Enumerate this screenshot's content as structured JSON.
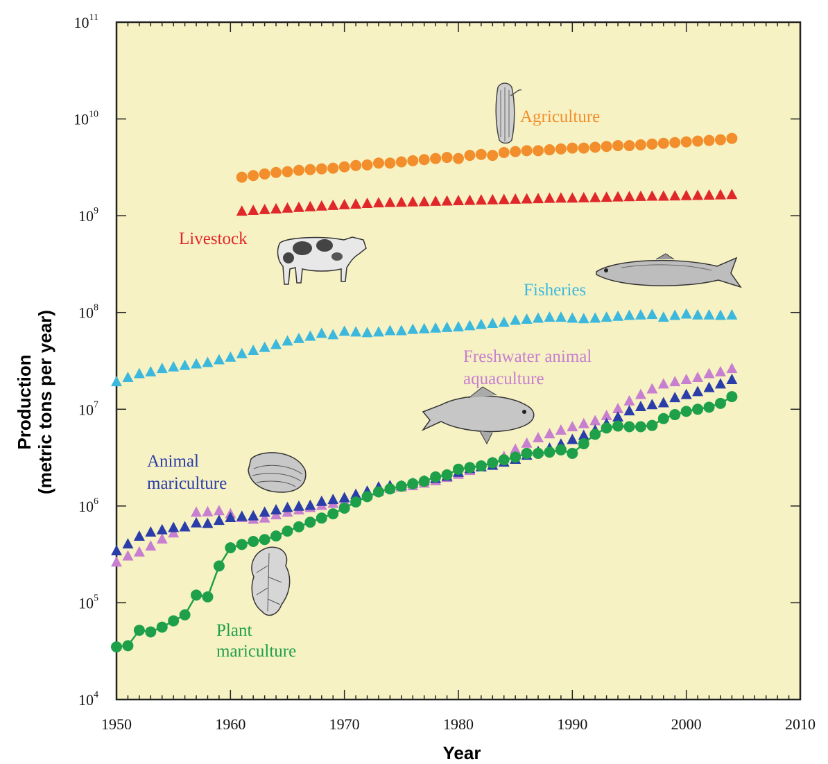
{
  "chart_data": {
    "type": "scatter",
    "title": "",
    "xlabel": "Year",
    "ylabel_line1": "Production",
    "ylabel_line2": "(metric tons per year)",
    "xlim": [
      1950,
      2010
    ],
    "ylim": [
      10000,
      100000000000
    ],
    "yscale": "log",
    "grid": false,
    "x_ticks": [
      "1950",
      "1960",
      "1970",
      "1980",
      "1990",
      "2000",
      "2010"
    ],
    "y_ticks": [
      {
        "base": "10",
        "exp": "4"
      },
      {
        "base": "10",
        "exp": "5"
      },
      {
        "base": "10",
        "exp": "6"
      },
      {
        "base": "10",
        "exp": "7"
      },
      {
        "base": "10",
        "exp": "8"
      },
      {
        "base": "10",
        "exp": "9"
      },
      {
        "base": "10",
        "exp": "10"
      },
      {
        "base": "10",
        "exp": "11"
      }
    ],
    "series": [
      {
        "name": "Agriculture",
        "label_lines": [
          "Agriculture"
        ],
        "color": "#f28e2b",
        "marker": "circle",
        "x": [
          1961,
          1962,
          1963,
          1964,
          1965,
          1966,
          1967,
          1968,
          1969,
          1970,
          1971,
          1972,
          1973,
          1974,
          1975,
          1976,
          1977,
          1978,
          1979,
          1980,
          1981,
          1982,
          1983,
          1984,
          1985,
          1986,
          1987,
          1988,
          1989,
          1990,
          1991,
          1992,
          1993,
          1994,
          1995,
          1996,
          1997,
          1998,
          1999,
          2000,
          2001,
          2002,
          2003,
          2004
        ],
        "y": [
          2500000000.0,
          2600000000.0,
          2700000000.0,
          2800000000.0,
          2850000000.0,
          2950000000.0,
          3000000000.0,
          3050000000.0,
          3100000000.0,
          3200000000.0,
          3300000000.0,
          3350000000.0,
          3500000000.0,
          3500000000.0,
          3600000000.0,
          3700000000.0,
          3800000000.0,
          3900000000.0,
          4000000000.0,
          3900000000.0,
          4200000000.0,
          4300000000.0,
          4200000000.0,
          4500000000.0,
          4600000000.0,
          4700000000.0,
          4700000000.0,
          4800000000.0,
          4900000000.0,
          5000000000.0,
          5000000000.0,
          5100000000.0,
          5200000000.0,
          5300000000.0,
          5300000000.0,
          5400000000.0,
          5500000000.0,
          5600000000.0,
          5700000000.0,
          5800000000.0,
          5900000000.0,
          6000000000.0,
          6100000000.0,
          6300000000.0
        ]
      },
      {
        "name": "Livestock",
        "label_lines": [
          "Livestock"
        ],
        "color": "#e0282a",
        "marker": "triangle",
        "x": [
          1961,
          1962,
          1963,
          1964,
          1965,
          1966,
          1967,
          1968,
          1969,
          1970,
          1971,
          1972,
          1973,
          1974,
          1975,
          1976,
          1977,
          1978,
          1979,
          1980,
          1981,
          1982,
          1983,
          1984,
          1985,
          1986,
          1987,
          1988,
          1989,
          1990,
          1991,
          1992,
          1993,
          1994,
          1995,
          1996,
          1997,
          1998,
          1999,
          2000,
          2001,
          2002,
          2003,
          2004
        ],
        "y": [
          1100000000.0,
          1120000000.0,
          1140000000.0,
          1160000000.0,
          1180000000.0,
          1200000000.0,
          1220000000.0,
          1240000000.0,
          1260000000.0,
          1280000000.0,
          1300000000.0,
          1320000000.0,
          1340000000.0,
          1350000000.0,
          1360000000.0,
          1370000000.0,
          1380000000.0,
          1390000000.0,
          1400000000.0,
          1410000000.0,
          1420000000.0,
          1430000000.0,
          1440000000.0,
          1450000000.0,
          1460000000.0,
          1470000000.0,
          1480000000.0,
          1490000000.0,
          1500000000.0,
          1500000000.0,
          1510000000.0,
          1520000000.0,
          1530000000.0,
          1540000000.0,
          1550000000.0,
          1560000000.0,
          1570000000.0,
          1570000000.0,
          1580000000.0,
          1590000000.0,
          1600000000.0,
          1610000000.0,
          1620000000.0,
          1630000000.0
        ]
      },
      {
        "name": "Fisheries",
        "label_lines": [
          "Fisheries"
        ],
        "color": "#3cb8dc",
        "marker": "triangle",
        "x": [
          1950,
          1951,
          1952,
          1953,
          1954,
          1955,
          1956,
          1957,
          1958,
          1959,
          1960,
          1961,
          1962,
          1963,
          1964,
          1965,
          1966,
          1967,
          1968,
          1969,
          1970,
          1971,
          1972,
          1973,
          1974,
          1975,
          1976,
          1977,
          1978,
          1979,
          1980,
          1981,
          1982,
          1983,
          1984,
          1985,
          1986,
          1987,
          1988,
          1989,
          1990,
          1991,
          1992,
          1993,
          1994,
          1995,
          1996,
          1997,
          1998,
          1999,
          2000,
          2001,
          2002,
          2003,
          2004
        ],
        "y": [
          19000000.0,
          21000000.0,
          23000000.0,
          24000000.0,
          26000000.0,
          27000000.0,
          28000000.0,
          29000000.0,
          30000000.0,
          32000000.0,
          34000000.0,
          37000000.0,
          40000000.0,
          43000000.0,
          46000000.0,
          50000000.0,
          53000000.0,
          56000000.0,
          60000000.0,
          58000000.0,
          63000000.0,
          62000000.0,
          61000000.0,
          62000000.0,
          64000000.0,
          64000000.0,
          66000000.0,
          67000000.0,
          68000000.0,
          69000000.0,
          70000000.0,
          72000000.0,
          74000000.0,
          76000000.0,
          78000000.0,
          82000000.0,
          84000000.0,
          86000000.0,
          88000000.0,
          88000000.0,
          86000000.0,
          85000000.0,
          86000000.0,
          88000000.0,
          90000000.0,
          92000000.0,
          93000000.0,
          94000000.0,
          88000000.0,
          92000000.0,
          95000000.0,
          93000000.0,
          93000000.0,
          92000000.0,
          93000000.0
        ]
      },
      {
        "name": "Freshwater animal aquaculture",
        "label_lines": [
          "Freshwater animal",
          "aquaculture"
        ],
        "color": "#c77fcf",
        "marker": "triangle",
        "x": [
          1950,
          1951,
          1952,
          1953,
          1954,
          1955,
          1956,
          1957,
          1958,
          1959,
          1960,
          1961,
          1962,
          1963,
          1964,
          1965,
          1966,
          1967,
          1968,
          1969,
          1970,
          1971,
          1972,
          1973,
          1974,
          1975,
          1976,
          1977,
          1978,
          1979,
          1980,
          1981,
          1982,
          1983,
          1984,
          1985,
          1986,
          1987,
          1988,
          1989,
          1990,
          1991,
          1992,
          1993,
          1994,
          1995,
          1996,
          1997,
          1998,
          1999,
          2000,
          2001,
          2002,
          2003,
          2004
        ],
        "y": [
          260000.0,
          300000.0,
          330000.0,
          380000.0,
          450000.0,
          520000.0,
          600000.0,
          850000.0,
          860000.0,
          880000.0,
          820000.0,
          750000.0,
          720000.0,
          740000.0,
          800000.0,
          850000.0,
          900000.0,
          950000.0,
          1000000.0,
          1050000.0,
          1100000.0,
          1200000.0,
          1300000.0,
          1400000.0,
          1500000.0,
          1550000.0,
          1600000.0,
          1700000.0,
          1800000.0,
          1950000.0,
          2100000.0,
          2300000.0,
          2500000.0,
          2800000.0,
          3200000.0,
          3800000.0,
          4400000.0,
          5000000.0,
          5500000.0,
          6000000.0,
          6500000.0,
          7000000.0,
          7500000.0,
          8500000.0,
          10000000.0,
          12000000.0,
          14000000.0,
          16000000.0,
          18000000.0,
          19000000.0,
          20000000.0,
          21000000.0,
          23000000.0,
          24000000.0,
          26000000.0
        ]
      },
      {
        "name": "Animal mariculture",
        "label_lines": [
          "Animal",
          "mariculture"
        ],
        "color": "#2b3da8",
        "marker": "triangle",
        "x": [
          1950,
          1951,
          1952,
          1953,
          1954,
          1955,
          1956,
          1957,
          1958,
          1959,
          1960,
          1961,
          1962,
          1963,
          1964,
          1965,
          1966,
          1967,
          1968,
          1969,
          1970,
          1971,
          1972,
          1973,
          1974,
          1975,
          1976,
          1977,
          1978,
          1979,
          1980,
          1981,
          1982,
          1983,
          1984,
          1985,
          1986,
          1987,
          1988,
          1989,
          1990,
          1991,
          1992,
          1993,
          1994,
          1995,
          1996,
          1997,
          1998,
          1999,
          2000,
          2001,
          2002,
          2003,
          2004
        ],
        "y": [
          340000.0,
          400000.0,
          480000.0,
          530000.0,
          560000.0,
          590000.0,
          600000.0,
          660000.0,
          650000.0,
          700000.0,
          750000.0,
          770000.0,
          780000.0,
          850000.0,
          900000.0,
          950000.0,
          980000.0,
          1000000.0,
          1100000.0,
          1150000.0,
          1200000.0,
          1300000.0,
          1400000.0,
          1550000.0,
          1600000.0,
          1600000.0,
          1700000.0,
          1800000.0,
          1900000.0,
          2000000.0,
          2200000.0,
          2400000.0,
          2500000.0,
          2600000.0,
          2800000.0,
          3000000.0,
          3300000.0,
          3600000.0,
          3900000.0,
          4300000.0,
          4800000.0,
          5300000.0,
          6000000.0,
          7000000.0,
          8200000.0,
          9500000.0,
          10500000.0,
          11000000.0,
          11500000.0,
          13000000.0,
          14000000.0,
          15000000.0,
          16500000.0,
          18000000.0,
          20000000.0
        ]
      },
      {
        "name": "Plant mariculture",
        "label_lines": [
          "Plant",
          "mariculture"
        ],
        "color": "#1ea04a",
        "marker": "circle",
        "connected": true,
        "x": [
          1950,
          1951,
          1952,
          1953,
          1954,
          1955,
          1956,
          1957,
          1958,
          1959,
          1960,
          1961,
          1962,
          1963,
          1964,
          1965,
          1966,
          1967,
          1968,
          1969,
          1970,
          1971,
          1972,
          1973,
          1974,
          1975,
          1976,
          1977,
          1978,
          1979,
          1980,
          1981,
          1982,
          1983,
          1984,
          1985,
          1986,
          1987,
          1988,
          1989,
          1990,
          1991,
          1992,
          1993,
          1994,
          1995,
          1996,
          1997,
          1998,
          1999,
          2000,
          2001,
          2002,
          2003,
          2004
        ],
        "y": [
          35000.0,
          36000.0,
          52000.0,
          50000.0,
          56000.0,
          65000.0,
          75000.0,
          120000.0,
          115000.0,
          240000.0,
          370000.0,
          400000.0,
          430000.0,
          450000.0,
          490000.0,
          550000.0,
          610000.0,
          680000.0,
          750000.0,
          830000.0,
          950000.0,
          1100000.0,
          1250000.0,
          1400000.0,
          1500000.0,
          1600000.0,
          1700000.0,
          1800000.0,
          2000000.0,
          2100000.0,
          2400000.0,
          2500000.0,
          2600000.0,
          2800000.0,
          3000000.0,
          3200000.0,
          3500000.0,
          3500000.0,
          3600000.0,
          3800000.0,
          3500000.0,
          4400000.0,
          5500000.0,
          6400000.0,
          6700000.0,
          6600000.0,
          6600000.0,
          6800000.0,
          8000000.0,
          8800000.0,
          9500000.0,
          10000000.0,
          10500000.0,
          11500000.0,
          13500000.0
        ]
      }
    ]
  },
  "style": {
    "plot_background": "#f7f2c4",
    "frame_color": "#222222",
    "text_color": "#111111"
  },
  "icons": [
    "corn-icon",
    "cow-icon",
    "fish-icon",
    "carp-icon",
    "clam-icon",
    "seaweed-icon"
  ]
}
